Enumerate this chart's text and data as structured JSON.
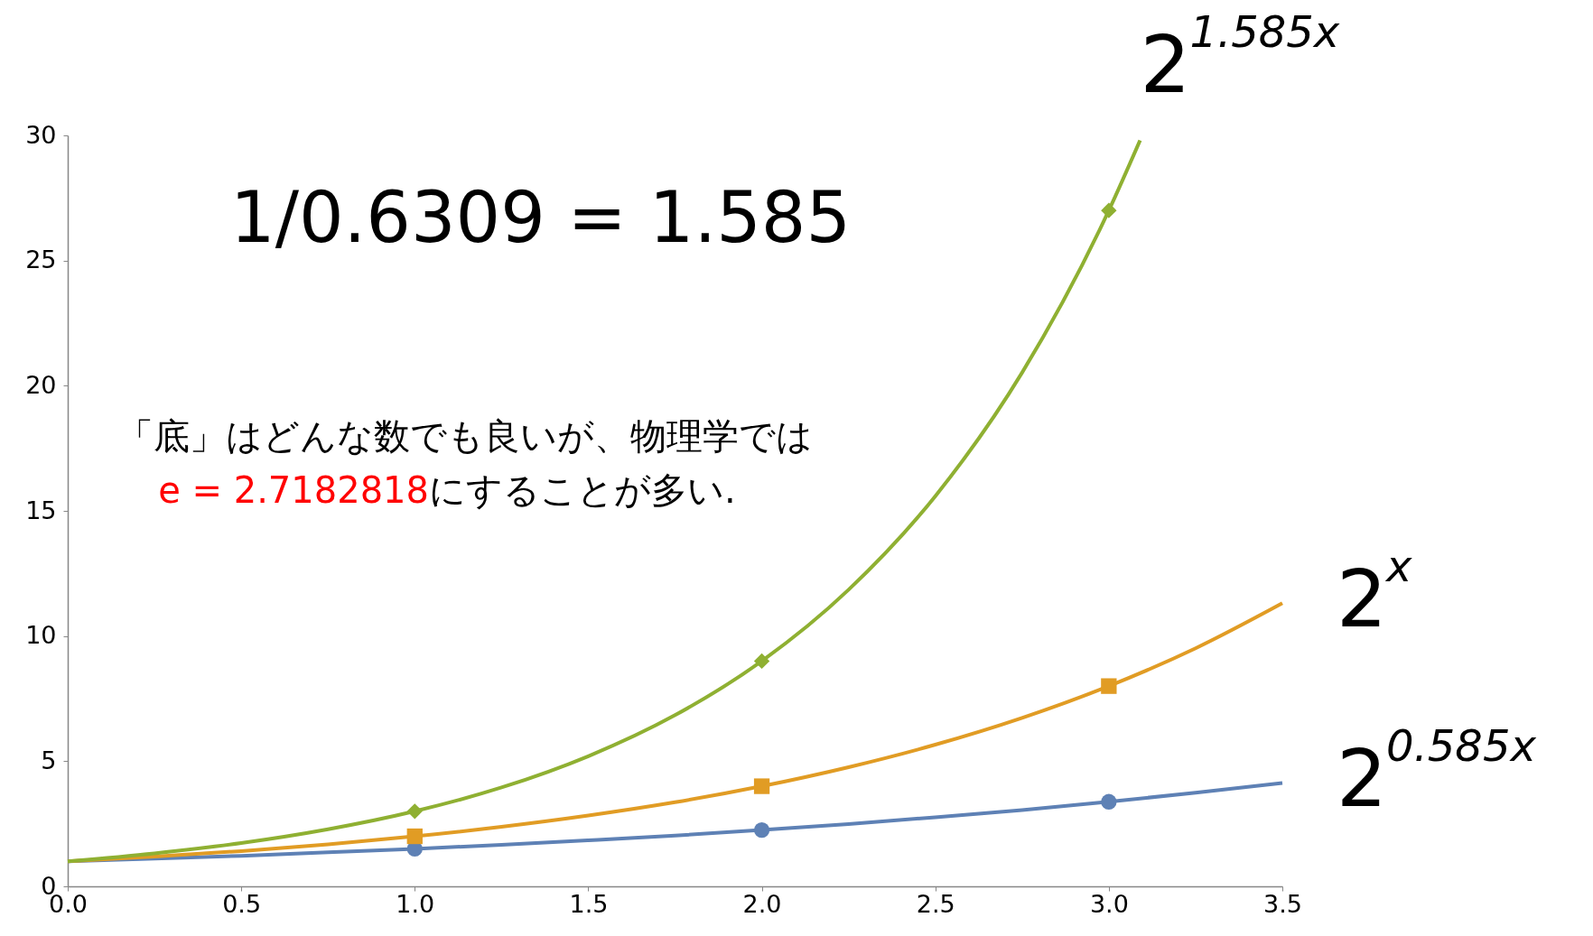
{
  "chart_data": {
    "type": "line",
    "annotations": [
      "1/0.6309 = 1.585",
      "「底」はどんな数でも良いが、物理学では",
      "e = 2.7182818",
      "にすることが多い."
    ],
    "series": [
      {
        "name": "2$^{0.585x}$",
        "color": "#5e81b5",
        "marker": "none",
        "x": [
          0,
          0.25,
          0.5,
          0.75,
          1,
          1.25,
          1.5,
          1.75,
          2,
          2.25,
          2.5,
          2.75,
          3,
          3.25,
          3.5
        ],
        "values": [
          1,
          1.11,
          1.22,
          1.36,
          1.5,
          1.66,
          1.84,
          2.03,
          2.25,
          2.49,
          2.76,
          3.05,
          3.38,
          3.74,
          4.13
        ]
      },
      {
        "name": "2$^{x}$",
        "color": "#e19c24",
        "marker": "none",
        "x": [
          0,
          0.25,
          0.5,
          0.75,
          1,
          1.25,
          1.5,
          1.75,
          2,
          2.25,
          2.5,
          2.75,
          3,
          3.25,
          3.5
        ],
        "values": [
          1,
          1.19,
          1.41,
          1.68,
          2,
          2.38,
          2.83,
          3.36,
          4,
          4.76,
          5.66,
          6.73,
          8,
          9.51,
          11.31
        ]
      },
      {
        "name": "2$^{1.585x}$",
        "color": "#8fb032",
        "marker": "none",
        "x": [
          0,
          0.25,
          0.5,
          0.75,
          1,
          1.25,
          1.5,
          1.75,
          2,
          2.25,
          2.5,
          2.75,
          3,
          3.09
        ],
        "values": [
          1,
          1.32,
          1.73,
          2.28,
          3,
          3.95,
          5.2,
          6.84,
          9,
          11.85,
          15.59,
          20.52,
          27,
          29.8
        ]
      },
      {
        "color": "#5e81b5",
        "type": "scatter",
        "marker": "circle",
        "x": [
          1,
          2,
          3
        ],
        "values": [
          1.5,
          2.25,
          3.38
        ]
      },
      {
        "color": "#e19c24",
        "type": "scatter",
        "marker": "square",
        "x": [
          1,
          2,
          3
        ],
        "values": [
          2,
          4,
          8
        ]
      },
      {
        "color": "#8fb032",
        "type": "scatter",
        "marker": "diamond",
        "x": [
          1,
          2,
          3
        ],
        "values": [
          3,
          9,
          27
        ]
      }
    ],
    "xlim": [
      0,
      3.5
    ],
    "xticks": [
      {
        "value": 0,
        "label": "0.0"
      },
      {
        "value": 0.5,
        "label": "0.5"
      },
      {
        "value": 1,
        "label": "1.0"
      },
      {
        "value": 1.5,
        "label": "1.5"
      },
      {
        "value": 2,
        "label": "2.0"
      },
      {
        "value": 2.5,
        "label": "2.5"
      },
      {
        "value": 3,
        "label": "3.0"
      },
      {
        "value": 3.5,
        "label": "3.5"
      }
    ],
    "ylim": [
      0,
      30
    ],
    "yticks": [
      0,
      5,
      10,
      15,
      20,
      25,
      30
    ],
    "grid": false,
    "line_style": "solid"
  }
}
